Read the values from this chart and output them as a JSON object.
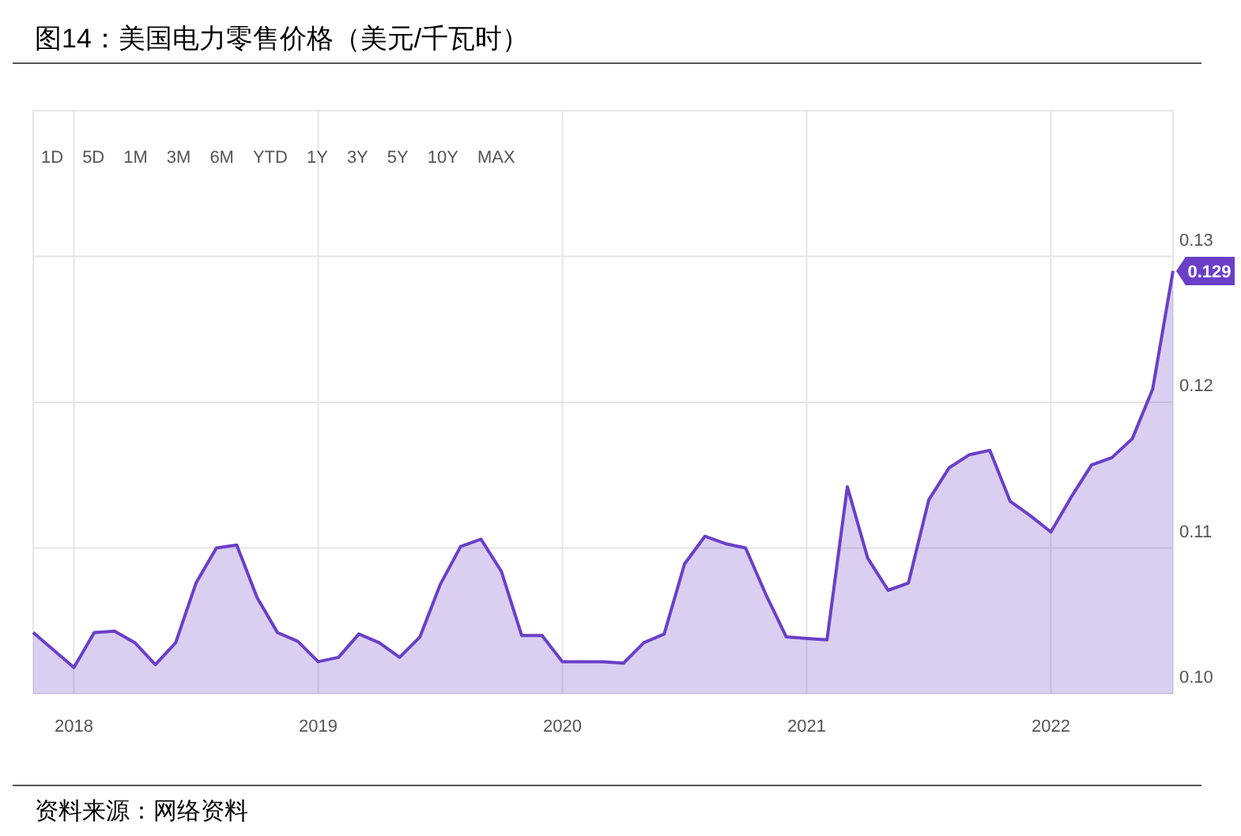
{
  "chart_data": {
    "type": "area",
    "title": "图14：美国电力零售价格（美元/千瓦时）",
    "annotations": [
      "1D",
      "5D",
      "1M",
      "3M",
      "6M",
      "YTD",
      "1Y",
      "3Y",
      "5Y",
      "10Y",
      "MAX",
      {
        "text": "0.129",
        "x": "2022-07",
        "y": 0.129
      },
      "资料来源：网络资料"
    ],
    "x": [
      "2017-11",
      "2018-01",
      "2018-02",
      "2018-03",
      "2018-04",
      "2018-05",
      "2018-06",
      "2018-07",
      "2018-08",
      "2018-09",
      "2018-10",
      "2018-11",
      "2018-12",
      "2019-01",
      "2019-02",
      "2019-03",
      "2019-04",
      "2019-05",
      "2019-06",
      "2019-07",
      "2019-08",
      "2019-09",
      "2019-10",
      "2019-11",
      "2019-12",
      "2020-01",
      "2020-02",
      "2020-03",
      "2020-04",
      "2020-05",
      "2020-06",
      "2020-07",
      "2020-08",
      "2020-09",
      "2020-10",
      "2020-11",
      "2020-12",
      "2021-01",
      "2021-02",
      "2021-03",
      "2021-04",
      "2021-05",
      "2021-06",
      "2021-07",
      "2021-08",
      "2021-09",
      "2021-10",
      "2021-11",
      "2021-12",
      "2022-01",
      "2022-02",
      "2022-03",
      "2022-04",
      "2022-05",
      "2022-06",
      "2022-07"
    ],
    "series": [
      {
        "color": "#6a3fc8",
        "values": [
          0.1042,
          0.1018,
          0.1042,
          0.1043,
          0.1035,
          0.102,
          0.1035,
          0.1076,
          0.11,
          0.1102,
          0.1066,
          0.1042,
          0.1036,
          0.1022,
          0.1025,
          0.1041,
          0.1035,
          0.1025,
          0.1039,
          0.1075,
          0.1101,
          0.1106,
          0.1084,
          0.104,
          0.104,
          0.1022,
          0.1022,
          0.1022,
          0.1021,
          0.1035,
          0.1041,
          0.1089,
          0.1108,
          0.1103,
          0.11,
          0.1068,
          0.1039,
          0.1038,
          0.1037,
          0.1142,
          0.1093,
          0.1071,
          0.1076,
          0.1133,
          0.1155,
          0.1164,
          0.1167,
          0.1132,
          0.1122,
          0.1111,
          0.1135,
          0.1157,
          0.1162,
          0.1175,
          0.1209,
          0.129
        ]
      }
    ],
    "xlim": [
      "2017-11",
      "2022-07"
    ],
    "ylim": [
      0.1,
      0.14
    ],
    "xticks": [
      "2018",
      "2019",
      "2020",
      "2021",
      "2022"
    ],
    "yticks": [
      {
        "value": 0.1,
        "label": "0.10"
      },
      0.11,
      0.12,
      0.13
    ],
    "grid": true
  }
}
